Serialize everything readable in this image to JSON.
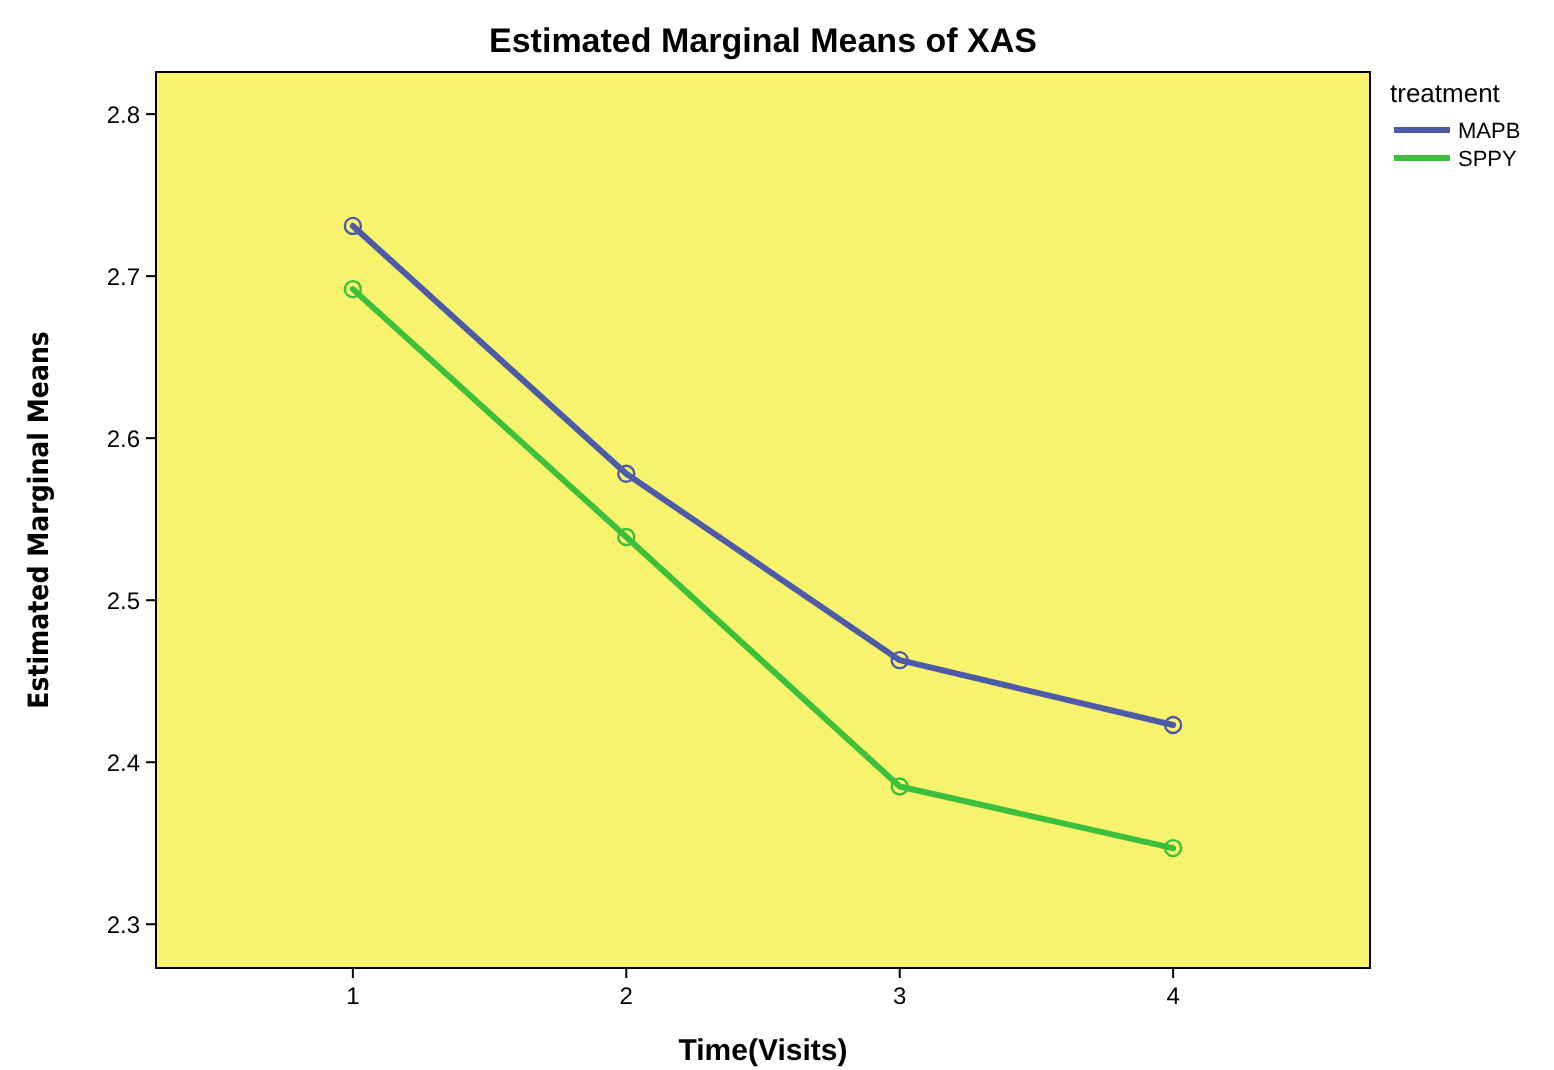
{
  "chart_data": {
    "type": "line",
    "title": "Estimated Marginal Means of XAS",
    "xlabel": "Time(Visits)",
    "ylabel": "Estimated Marginal Means",
    "legend_title": "treatment",
    "categories": [
      "1",
      "2",
      "3",
      "4"
    ],
    "series": [
      {
        "name": "MAPB",
        "color": "#4c5aa8",
        "values": [
          2.731,
          2.578,
          2.463,
          2.423
        ]
      },
      {
        "name": "SPPY",
        "color": "#3cbf3c",
        "values": [
          2.692,
          2.539,
          2.385,
          2.347
        ]
      }
    ],
    "ylim": [
      2.273,
      2.826
    ],
    "yticks": [
      {
        "value": 2.3,
        "label": "2.3"
      },
      {
        "value": 2.4,
        "label": "2.4"
      },
      {
        "value": 2.5,
        "label": "2.5"
      },
      {
        "value": 2.6,
        "label": "2.6"
      },
      {
        "value": 2.7,
        "label": "2.7"
      },
      {
        "value": 2.8,
        "label": "2.8"
      }
    ],
    "grid": false,
    "legend": "top right",
    "marker": "circle",
    "line_style": "solid"
  }
}
